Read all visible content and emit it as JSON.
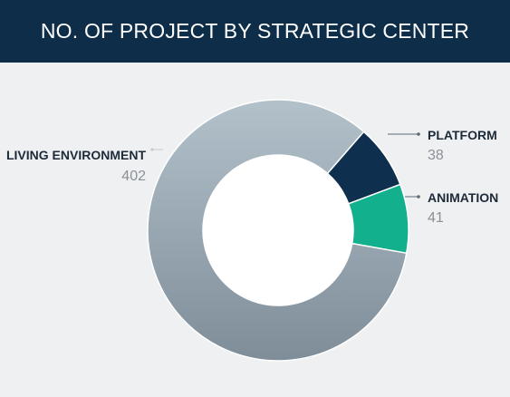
{
  "header": {
    "title": "NO. OF PROJECT BY STRATEGIC CENTER"
  },
  "chart_data": {
    "type": "pie",
    "title": "NO. OF PROJECT BY STRATEGIC CENTER",
    "donut": true,
    "slices": [
      {
        "label": "PLATFORM",
        "value": 38,
        "color": "#0f2f4f"
      },
      {
        "label": "ANIMATION",
        "value": 41,
        "color": "#12b08c"
      },
      {
        "label": "LIVING ENVIRONMENT",
        "value": 402,
        "color": "#9aabb7"
      }
    ],
    "values_display": [
      "38",
      "41",
      "402"
    ]
  }
}
